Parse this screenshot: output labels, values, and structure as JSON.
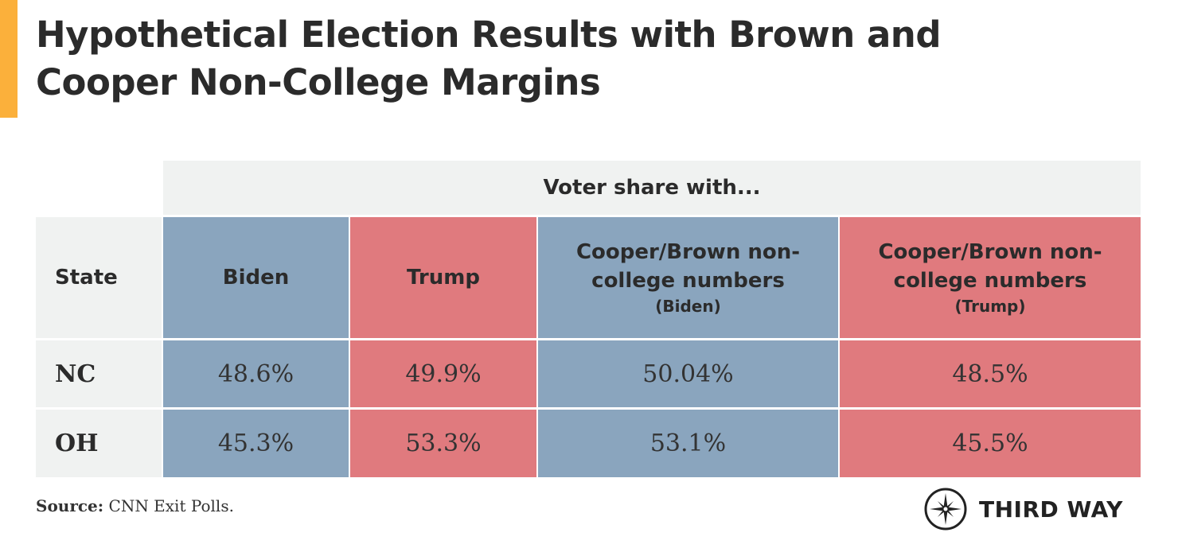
{
  "title": "Hypothetical Election Results with Brown and Cooper Non-College Margins",
  "colors": {
    "accent": "#fbb03b",
    "biden": "#8aa5be",
    "trump": "#e07a7e",
    "header_gray": "#f0f2f1"
  },
  "chart_data": {
    "type": "table",
    "group_header": "Voter share with...",
    "columns": [
      {
        "label": "State",
        "sub": ""
      },
      {
        "label": "Biden",
        "sub": ""
      },
      {
        "label": "Trump",
        "sub": ""
      },
      {
        "label": "Cooper/Brown non-college numbers",
        "sub": "(Biden)"
      },
      {
        "label": "Cooper/Brown non-college numbers",
        "sub": "(Trump)"
      }
    ],
    "rows": [
      [
        "NC",
        "48.6%",
        "49.9%",
        "50.04%",
        "48.5%"
      ],
      [
        "OH",
        "45.3%",
        "53.3%",
        "53.1%",
        "45.5%"
      ]
    ]
  },
  "source": {
    "label": "Source:",
    "text": " CNN Exit Polls."
  },
  "logo": {
    "text": "THIRD WAY",
    "icon": "compass-star-icon"
  }
}
